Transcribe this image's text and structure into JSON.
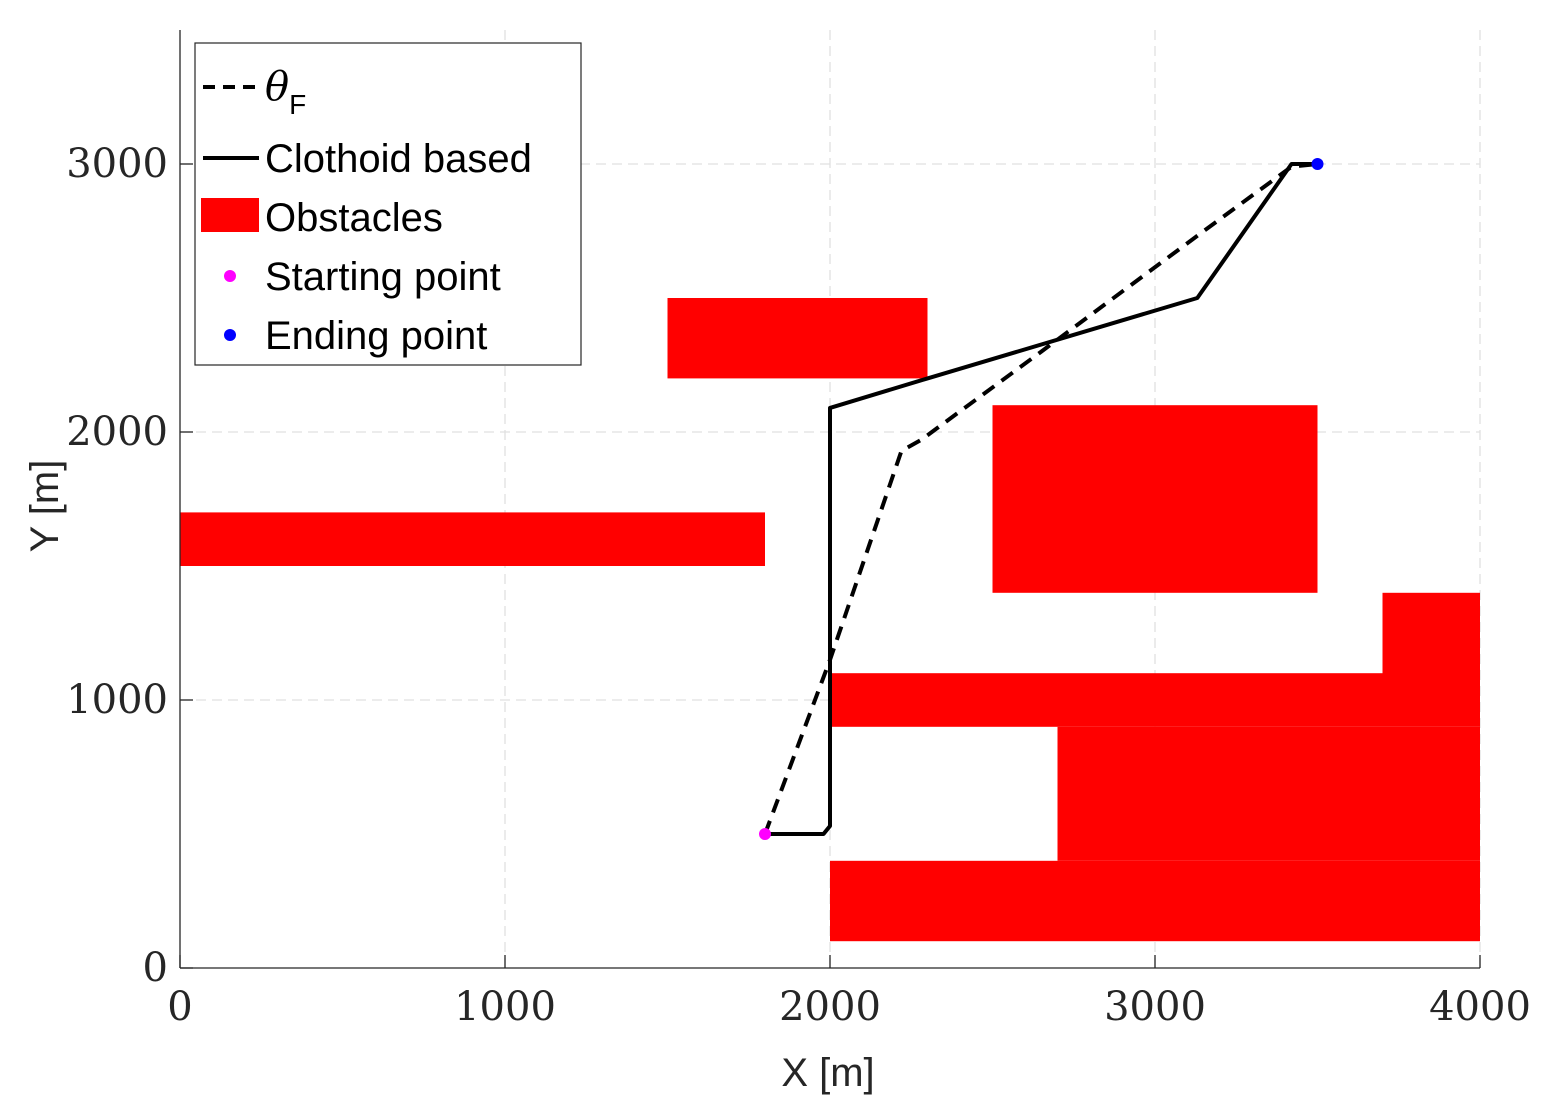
{
  "chart_data": {
    "type": "line",
    "xlabel": "X [m]",
    "ylabel": "Y [m]",
    "xlim": [
      0,
      4000
    ],
    "ylim": [
      0,
      3500
    ],
    "xticks": [
      0,
      1000,
      2000,
      3000,
      4000
    ],
    "yticks": [
      0,
      1000,
      2000,
      3000
    ],
    "xtick_labels": [
      "0",
      "1000",
      "2000",
      "3000",
      "4000"
    ],
    "ytick_labels": [
      "0",
      "1000",
      "2000",
      "3000"
    ],
    "grid": true,
    "legend_position": "top-left",
    "legend": {
      "theta_symbol": "θ",
      "theta_subscript": "F",
      "clothoid_label": "Clothoid based",
      "obstacles_label": "Obstacles",
      "start_label": "Starting point",
      "end_label": "Ending point"
    },
    "series": [
      {
        "key": "thetaF",
        "style": "dashed",
        "color": "#000000",
        "points": [
          [
            1800,
            500
          ],
          [
            2000,
            1150
          ],
          [
            2220,
            1930
          ],
          [
            2280,
            1970
          ],
          [
            2650,
            2300
          ],
          [
            3150,
            2750
          ],
          [
            3420,
            2990
          ],
          [
            3500,
            3000
          ]
        ]
      },
      {
        "key": "clothoid",
        "style": "solid",
        "color": "#000000",
        "points": [
          [
            1800,
            500
          ],
          [
            1980,
            500
          ],
          [
            2000,
            530
          ],
          [
            2000,
            2090
          ],
          [
            2300,
            2200
          ],
          [
            3130,
            2500
          ],
          [
            3420,
            3000
          ],
          [
            3500,
            3000
          ]
        ]
      }
    ],
    "obstacles": [
      {
        "x": [
          1500,
          2300
        ],
        "y": [
          2200,
          2500
        ]
      },
      {
        "x": [
          0,
          1800
        ],
        "y": [
          1500,
          1700
        ]
      },
      {
        "x": [
          2500,
          3500
        ],
        "y": [
          1400,
          2100
        ]
      },
      {
        "x": [
          2000,
          3700
        ],
        "y": [
          900,
          1100
        ]
      },
      {
        "x": [
          3700,
          4000
        ],
        "y": [
          900,
          1400
        ]
      },
      {
        "x": [
          2700,
          4000
        ],
        "y": [
          400,
          900
        ]
      },
      {
        "x": [
          2000,
          4000
        ],
        "y": [
          100,
          400
        ]
      }
    ],
    "starting_point": {
      "x": 1800,
      "y": 500
    },
    "ending_point": {
      "x": 3500,
      "y": 3000
    },
    "colors": {
      "obstacle": "#ff0000",
      "path": "#000000",
      "start": "#ff00ff",
      "end": "#0000ff",
      "grid": "#e0e0e0",
      "axis": "#262626"
    }
  }
}
